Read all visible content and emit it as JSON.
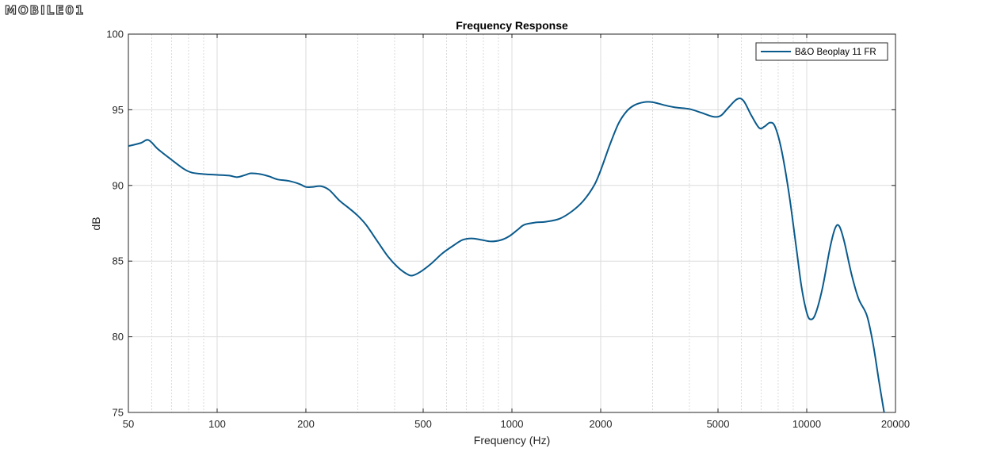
{
  "watermark": {
    "text": "MOBILE01"
  },
  "chart_data": {
    "type": "line",
    "title": "Frequency Response",
    "xlabel": "Frequency (Hz)",
    "ylabel": "dB",
    "xscale": "log",
    "xlim": [
      50,
      20000
    ],
    "ylim": [
      75,
      100
    ],
    "xticks": [
      50,
      100,
      200,
      500,
      1000,
      2000,
      5000,
      10000,
      20000
    ],
    "yticks": [
      75,
      80,
      85,
      90,
      95,
      100
    ],
    "grid": true,
    "legend_position": "top-right",
    "series": [
      {
        "name": "B&O Beoplay 11 FR",
        "color": "#0a5a8c",
        "points": [
          [
            50,
            92.6
          ],
          [
            55,
            92.8
          ],
          [
            58.5,
            93.0
          ],
          [
            63,
            92.4
          ],
          [
            70,
            91.7
          ],
          [
            77,
            91.1
          ],
          [
            82,
            90.85
          ],
          [
            90,
            90.75
          ],
          [
            100,
            90.7
          ],
          [
            110,
            90.65
          ],
          [
            117,
            90.55
          ],
          [
            125,
            90.7
          ],
          [
            130,
            90.8
          ],
          [
            140,
            90.75
          ],
          [
            150,
            90.6
          ],
          [
            160,
            90.4
          ],
          [
            175,
            90.3
          ],
          [
            190,
            90.1
          ],
          [
            200,
            89.9
          ],
          [
            210,
            89.9
          ],
          [
            225,
            89.95
          ],
          [
            240,
            89.7
          ],
          [
            260,
            89.0
          ],
          [
            280,
            88.5
          ],
          [
            300,
            88.0
          ],
          [
            320,
            87.4
          ],
          [
            350,
            86.3
          ],
          [
            380,
            85.3
          ],
          [
            410,
            84.6
          ],
          [
            440,
            84.15
          ],
          [
            460,
            84.05
          ],
          [
            490,
            84.3
          ],
          [
            530,
            84.8
          ],
          [
            580,
            85.5
          ],
          [
            630,
            86.0
          ],
          [
            680,
            86.4
          ],
          [
            730,
            86.5
          ],
          [
            790,
            86.4
          ],
          [
            850,
            86.3
          ],
          [
            920,
            86.4
          ],
          [
            980,
            86.65
          ],
          [
            1050,
            87.1
          ],
          [
            1100,
            87.4
          ],
          [
            1200,
            87.55
          ],
          [
            1300,
            87.6
          ],
          [
            1450,
            87.8
          ],
          [
            1600,
            88.3
          ],
          [
            1750,
            89.0
          ],
          [
            1900,
            90.0
          ],
          [
            2000,
            91.0
          ],
          [
            2150,
            92.7
          ],
          [
            2300,
            94.1
          ],
          [
            2450,
            94.9
          ],
          [
            2600,
            95.3
          ],
          [
            2800,
            95.5
          ],
          [
            3000,
            95.5
          ],
          [
            3300,
            95.3
          ],
          [
            3600,
            95.15
          ],
          [
            4000,
            95.05
          ],
          [
            4400,
            94.8
          ],
          [
            4800,
            94.55
          ],
          [
            5100,
            94.6
          ],
          [
            5400,
            95.1
          ],
          [
            5800,
            95.7
          ],
          [
            6100,
            95.6
          ],
          [
            6500,
            94.6
          ],
          [
            6900,
            93.8
          ],
          [
            7200,
            93.9
          ],
          [
            7500,
            94.15
          ],
          [
            7800,
            93.9
          ],
          [
            8200,
            92.4
          ],
          [
            8700,
            89.5
          ],
          [
            9200,
            86.0
          ],
          [
            9600,
            83.3
          ],
          [
            10000,
            81.6
          ],
          [
            10300,
            81.15
          ],
          [
            10700,
            81.5
          ],
          [
            11300,
            83.2
          ],
          [
            12000,
            85.9
          ],
          [
            12500,
            87.2
          ],
          [
            12900,
            87.3
          ],
          [
            13400,
            86.3
          ],
          [
            14200,
            84.1
          ],
          [
            15000,
            82.5
          ],
          [
            16000,
            81.4
          ],
          [
            16800,
            79.5
          ],
          [
            17600,
            77.0
          ],
          [
            18300,
            75.0
          ]
        ]
      }
    ]
  }
}
